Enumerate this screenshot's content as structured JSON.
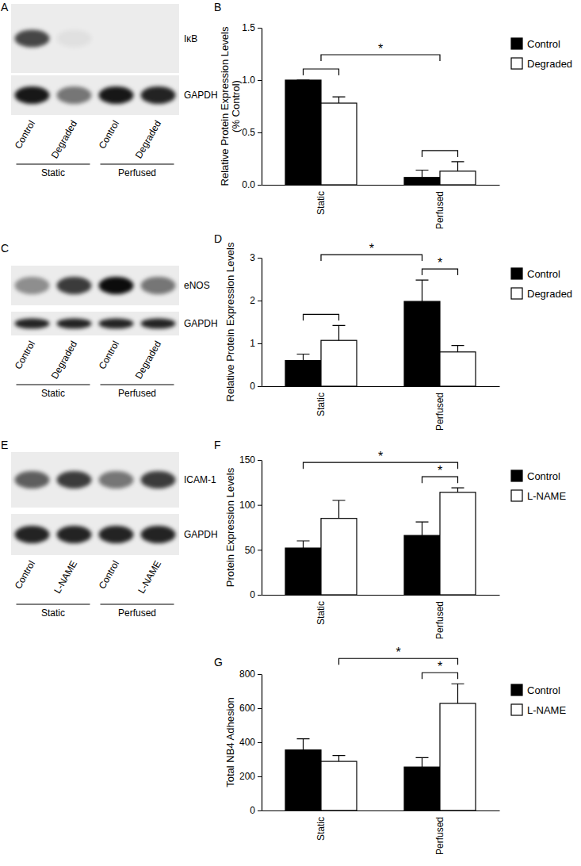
{
  "chart_data": [
    {
      "type": "bar",
      "panel": "B",
      "y_label": [
        "Relative Protein Expression Levels",
        "(% Control)"
      ],
      "categories": [
        "Static",
        "Perfused"
      ],
      "series": [
        {
          "name": "Control",
          "color": "#000000",
          "values": [
            1,
            0.07
          ],
          "errors": [
            0,
            0.07
          ]
        },
        {
          "name": "Degraded",
          "color": "#ffffff",
          "values": [
            0.78,
            0.13
          ],
          "errors": [
            0.06,
            0.09
          ]
        }
      ],
      "ylim": [
        0,
        1.5
      ],
      "yticks": [
        {
          "value": 0,
          "label": "0.0"
        },
        0.5,
        {
          "value": 1,
          "label": "1.0"
        },
        1.5
      ],
      "legend": "right",
      "brackets": [
        {
          "from": [
            0,
            0
          ],
          "to": [
            0,
            1
          ]
        },
        {
          "from": [
            1,
            0
          ],
          "to": [
            1,
            1
          ]
        },
        {
          "from": [
            0,
            null
          ],
          "to": [
            1,
            null
          ],
          "label": "*"
        }
      ]
    },
    {
      "type": "bar",
      "panel": "D",
      "y_label": "Relative Protein Expression Levels",
      "categories": [
        "Static",
        "Perfused"
      ],
      "series": [
        {
          "name": "Control",
          "color": "#000000",
          "values": [
            0.6,
            1.98
          ],
          "errors": [
            0.15,
            0.5
          ]
        },
        {
          "name": "Degraded",
          "color": "#ffffff",
          "values": [
            1.07,
            0.8
          ],
          "errors": [
            0.35,
            0.15
          ]
        }
      ],
      "ylim": [
        0,
        3
      ],
      "yticks": [
        0,
        1,
        2,
        3
      ],
      "legend": "right",
      "brackets": [
        {
          "from": [
            0,
            0
          ],
          "to": [
            0,
            1
          ]
        },
        {
          "from": [
            0,
            null
          ],
          "to": [
            1,
            0
          ],
          "label": "*"
        },
        {
          "from": [
            1,
            0
          ],
          "to": [
            1,
            1
          ],
          "label": "*"
        }
      ]
    },
    {
      "type": "bar",
      "panel": "F",
      "y_label": "Protein Expression Levels",
      "categories": [
        "Static",
        "Perfused"
      ],
      "series": [
        {
          "name": "Control",
          "color": "#000000",
          "values": [
            52,
            66
          ],
          "errors": [
            8,
            15
          ]
        },
        {
          "name": "L-NAME",
          "color": "#ffffff",
          "values": [
            85,
            114
          ],
          "errors": [
            20,
            5
          ]
        }
      ],
      "ylim": [
        0,
        150
      ],
      "yticks": [
        0,
        50,
        100,
        150
      ],
      "legend": "right",
      "brackets": [
        {
          "from": [
            0,
            0
          ],
          "to": [
            1,
            1
          ],
          "label": "*"
        },
        {
          "from": [
            1,
            0
          ],
          "to": [
            1,
            1
          ],
          "label": "*"
        }
      ]
    },
    {
      "type": "bar",
      "panel": "G",
      "y_label": "Total NB4 Adhesion",
      "categories": [
        "Static",
        "Perfused"
      ],
      "series": [
        {
          "name": "Control",
          "color": "#000000",
          "values": [
            355,
            255
          ],
          "errors": [
            65,
            55
          ]
        },
        {
          "name": "L-NAME",
          "color": "#ffffff",
          "values": [
            288,
            628
          ],
          "errors": [
            35,
            115
          ]
        }
      ],
      "ylim": [
        0,
        800
      ],
      "yticks": [
        0,
        200,
        400,
        600,
        800
      ],
      "legend": "right",
      "brackets": [
        {
          "from": [
            0,
            1
          ],
          "to": [
            1,
            1
          ],
          "label": "*"
        },
        {
          "from": [
            1,
            0
          ],
          "to": [
            1,
            1
          ],
          "label": "*"
        }
      ]
    }
  ],
  "blots": [
    {
      "panel": "A",
      "lanes": [
        "Control",
        "Degraded",
        "Control",
        "Degraded"
      ],
      "groups": [
        "Static",
        "Perfused"
      ],
      "rows": [
        {
          "label": "IκB",
          "intensity": [
            0.7,
            0.05,
            0,
            0
          ]
        },
        {
          "label": "GAPDH",
          "intensity": [
            0.9,
            0.5,
            0.9,
            0.85
          ]
        }
      ]
    },
    {
      "panel": "C",
      "lanes": [
        "Control",
        "Degraded",
        "Control",
        "Degraded"
      ],
      "groups": [
        "Static",
        "Perfused"
      ],
      "rows": [
        {
          "label": "eNOS",
          "intensity": [
            0.4,
            0.75,
            0.95,
            0.5
          ]
        },
        {
          "label": "GAPDH",
          "intensity": [
            0.85,
            0.85,
            0.85,
            0.85
          ]
        }
      ]
    },
    {
      "panel": "E",
      "lanes": [
        "Control",
        "L-NAME",
        "Control",
        "L-NAME"
      ],
      "groups": [
        "Static",
        "Perfused"
      ],
      "rows": [
        {
          "label": "ICAM-1",
          "intensity": [
            0.6,
            0.75,
            0.5,
            0.75
          ]
        },
        {
          "label": "GAPDH",
          "intensity": [
            0.85,
            0.85,
            0.85,
            0.85
          ]
        }
      ]
    }
  ]
}
